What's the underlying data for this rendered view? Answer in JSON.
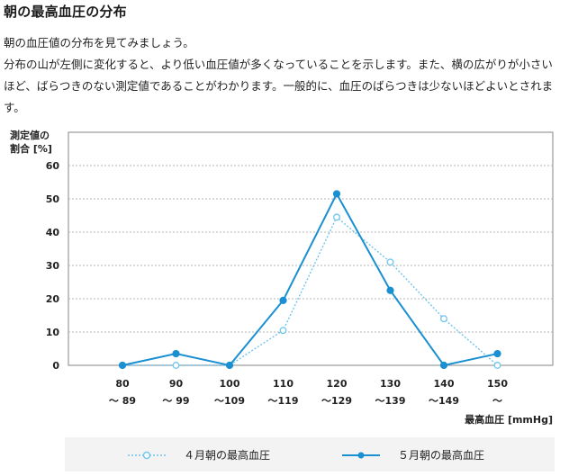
{
  "page": {
    "heading": "朝の最高血圧の分布",
    "paragraph1": "朝の血圧値の分布を見てみましょう。",
    "paragraph2": "分布の山が左側に変化すると、より低い血圧値が多くなっていることを示します。また、横の広がりが小さいほど、ばらつきのない測定値であることがわかります。一般的に、血圧のばらつきは少ないほどよいとされます。"
  },
  "chart_data": {
    "type": "line",
    "ylabel": [
      "測定値の",
      "割合 [%]"
    ],
    "xlabel": "最高血圧 [mmHg]",
    "ylim": [
      0,
      60
    ],
    "yticks": [
      "0",
      "10",
      "20",
      "30",
      "40",
      "50",
      "60"
    ],
    "categories": [
      {
        "top": "80",
        "bottom": "～ 89"
      },
      {
        "top": "90",
        "bottom": "～ 99"
      },
      {
        "top": "100",
        "bottom": "～109"
      },
      {
        "top": "110",
        "bottom": "～119"
      },
      {
        "top": "120",
        "bottom": "～129"
      },
      {
        "top": "130",
        "bottom": "～139"
      },
      {
        "top": "140",
        "bottom": "～149"
      },
      {
        "top": "150",
        "bottom": "～"
      }
    ],
    "grid": true,
    "series": [
      {
        "name": "４月朝の最高血圧",
        "color": "#6fc5ec",
        "style": "dotted",
        "values": [
          0,
          0,
          0,
          10.5,
          44.5,
          31,
          14,
          0
        ]
      },
      {
        "name": "５月朝の最高血圧",
        "color": "#1a8fd1",
        "style": "solid",
        "values": [
          0,
          3.5,
          0,
          19.5,
          51.5,
          22.5,
          0,
          3.5
        ]
      }
    ],
    "legend_position": "bottom"
  }
}
